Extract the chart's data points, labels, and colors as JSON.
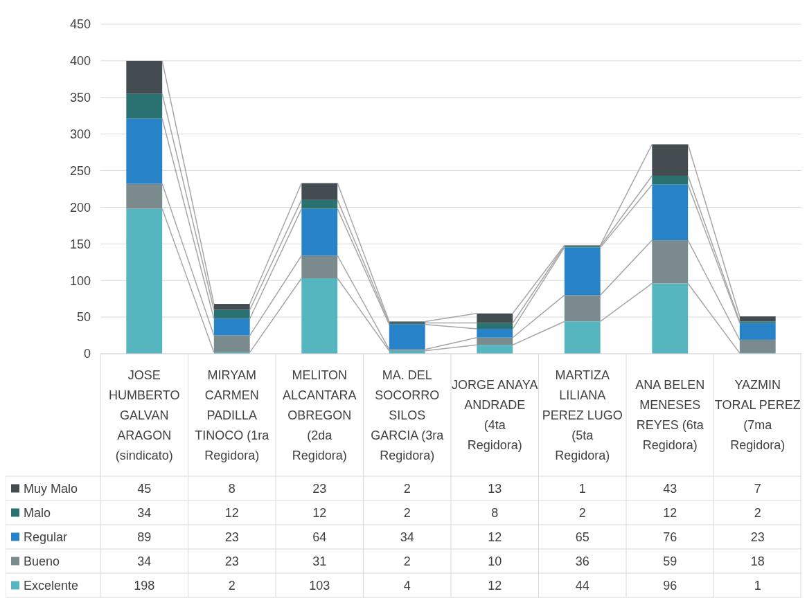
{
  "chart_data": {
    "type": "bar",
    "stacked": true,
    "categories": [
      "JOSE HUMBERTO GALVAN ARAGON (sindicato)",
      "MIRYAM CARMEN PADILLA TINOCO (1ra Regidora)",
      "MELITON ALCANTARA OBREGON (2da Regidora)",
      "MA. DEL SOCORRO SILOS GARCIA (3ra Regidora)",
      "JORGE ANAYA ANDRADE (4ta Regidora)",
      "MARTIZA LILIANA PEREZ LUGO (5ta Regidora)",
      "ANA BELEN MENESES REYES (6ta Regidora)",
      "YAZMIN TORAL PEREZ (7ma Regidora)"
    ],
    "series": [
      {
        "name": "Excelente",
        "color": "#56b6c0",
        "values": [
          198,
          2,
          103,
          4,
          12,
          44,
          96,
          1
        ]
      },
      {
        "name": "Bueno",
        "color": "#7b8b8d",
        "values": [
          34,
          23,
          31,
          2,
          10,
          36,
          59,
          18
        ]
      },
      {
        "name": "Regular",
        "color": "#2882c8",
        "values": [
          89,
          23,
          64,
          34,
          12,
          65,
          76,
          23
        ]
      },
      {
        "name": "Malo",
        "color": "#2a7272",
        "values": [
          34,
          12,
          12,
          2,
          8,
          2,
          12,
          2
        ]
      },
      {
        "name": "Muy Malo",
        "color": "#434d51",
        "values": [
          45,
          8,
          23,
          2,
          13,
          1,
          43,
          7
        ]
      }
    ],
    "ylim": [
      0,
      450
    ],
    "yticks": [
      0,
      50,
      100,
      150,
      200,
      250,
      300,
      350,
      400,
      450
    ],
    "grid": "y",
    "legend": "bottom",
    "data_labels": true
  }
}
